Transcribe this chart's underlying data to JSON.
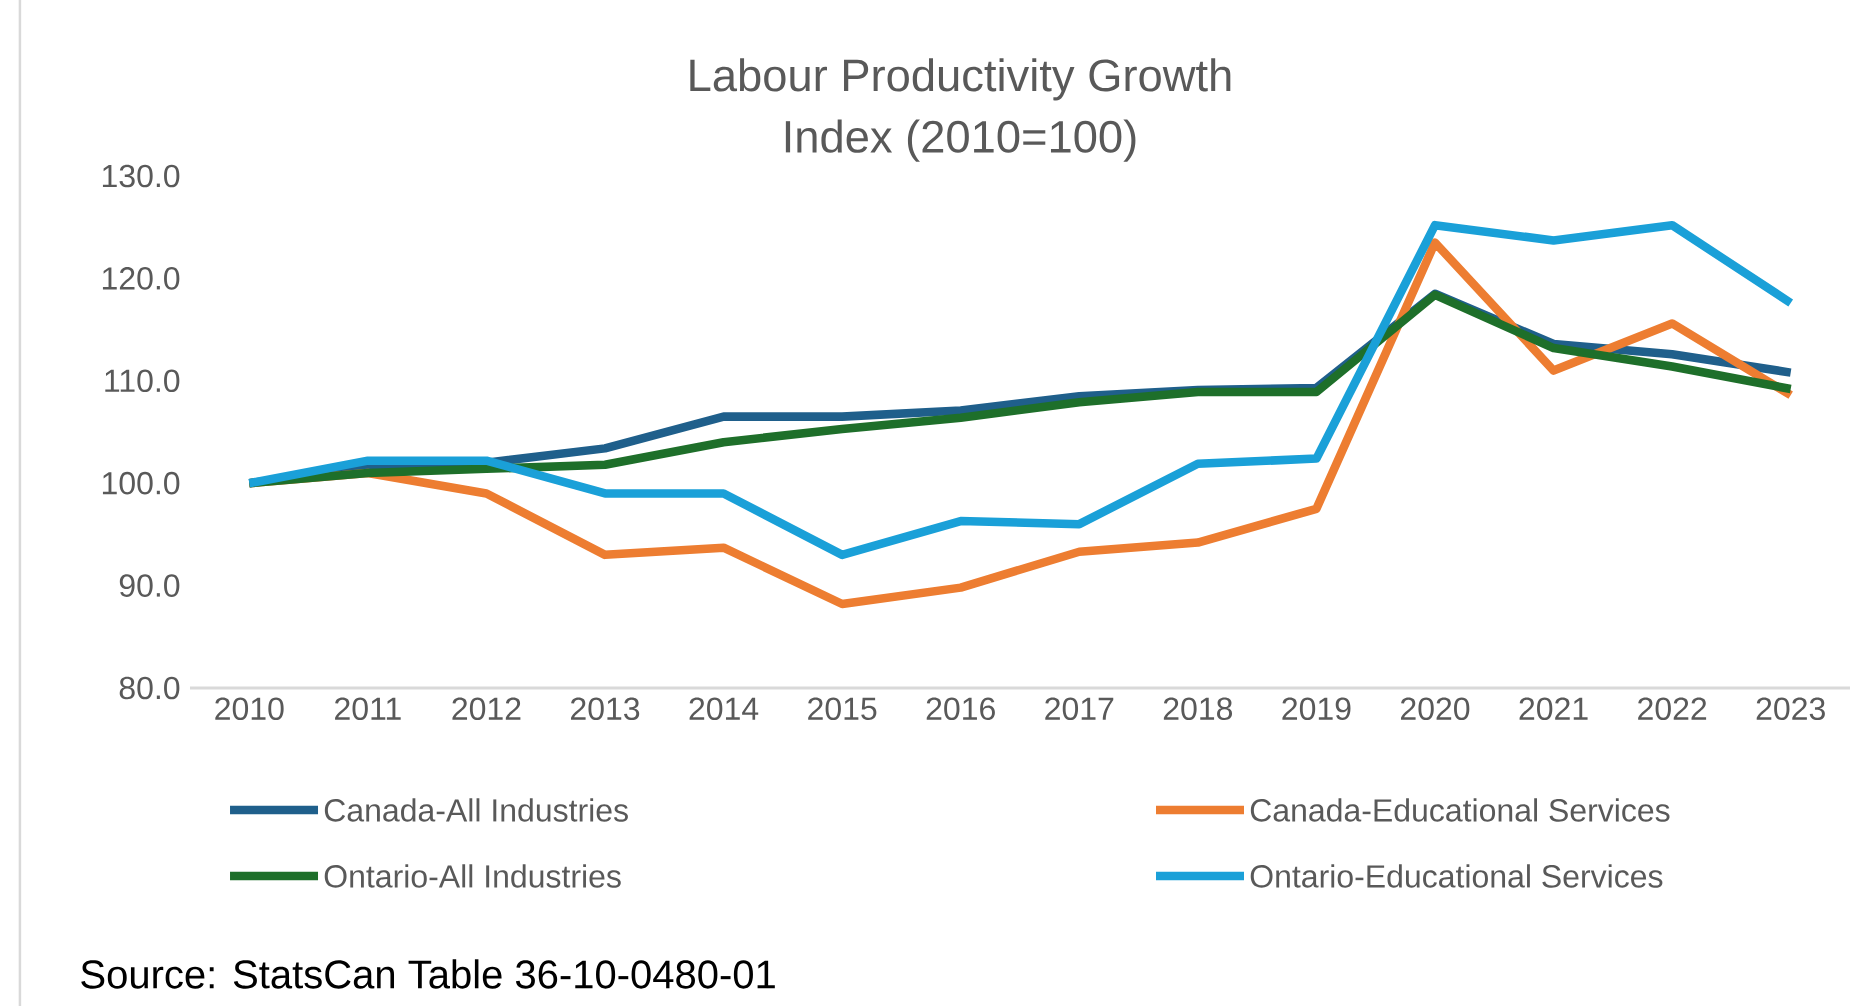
{
  "chart_data": {
    "type": "line",
    "title": "Labour Productivity Growth\nIndex (2010=100)",
    "categories": [
      "2010",
      "2011",
      "2012",
      "2013",
      "2014",
      "2015",
      "2016",
      "2017",
      "2018",
      "2019",
      "2020",
      "2021",
      "2022",
      "2023"
    ],
    "series": [
      {
        "name": "Canada-All Industries",
        "color": "#1f5f8b",
        "values": [
          100,
          101.5,
          102,
          103.4,
          106.5,
          106.5,
          107.1,
          108.5,
          109.1,
          109.3,
          118.5,
          113.6,
          112.6,
          110.8
        ]
      },
      {
        "name": "Canada-Educational Services",
        "color": "#ed7d31",
        "values": [
          100,
          101.0,
          99.0,
          93.0,
          93.7,
          88.2,
          89.8,
          93.3,
          94.2,
          97.5,
          123.5,
          111.0,
          115.6,
          108.6
        ]
      },
      {
        "name": "Ontario-All Industries",
        "color": "#1e6f2a",
        "values": [
          100,
          101.0,
          101.4,
          101.8,
          104.0,
          105.3,
          106.4,
          107.9,
          108.9,
          108.9,
          118.4,
          113.2,
          111.4,
          109.2
        ]
      },
      {
        "name": "Ontario-Educational Services",
        "color": "#1aa0d8",
        "values": [
          100,
          102.2,
          102.2,
          99.0,
          99.0,
          93.0,
          96.3,
          96.0,
          101.9,
          102.4,
          125.2,
          123.7,
          125.2,
          117.6
        ]
      }
    ],
    "ylim": [
      80,
      130
    ],
    "yticks": [
      {
        "value": 80,
        "label": "80.0"
      },
      {
        "value": 90,
        "label": "90.0"
      },
      {
        "value": 100,
        "label": "100.0"
      },
      {
        "value": 110,
        "label": "110.0"
      },
      {
        "value": 120,
        "label": "120.0"
      },
      {
        "value": 130,
        "label": "130.0"
      }
    ],
    "grid": false,
    "legend": "bottom",
    "marker": "none",
    "line_style": "solid",
    "annotations": [
      "Source: StatsCan Table 36-10-0480-01"
    ]
  }
}
